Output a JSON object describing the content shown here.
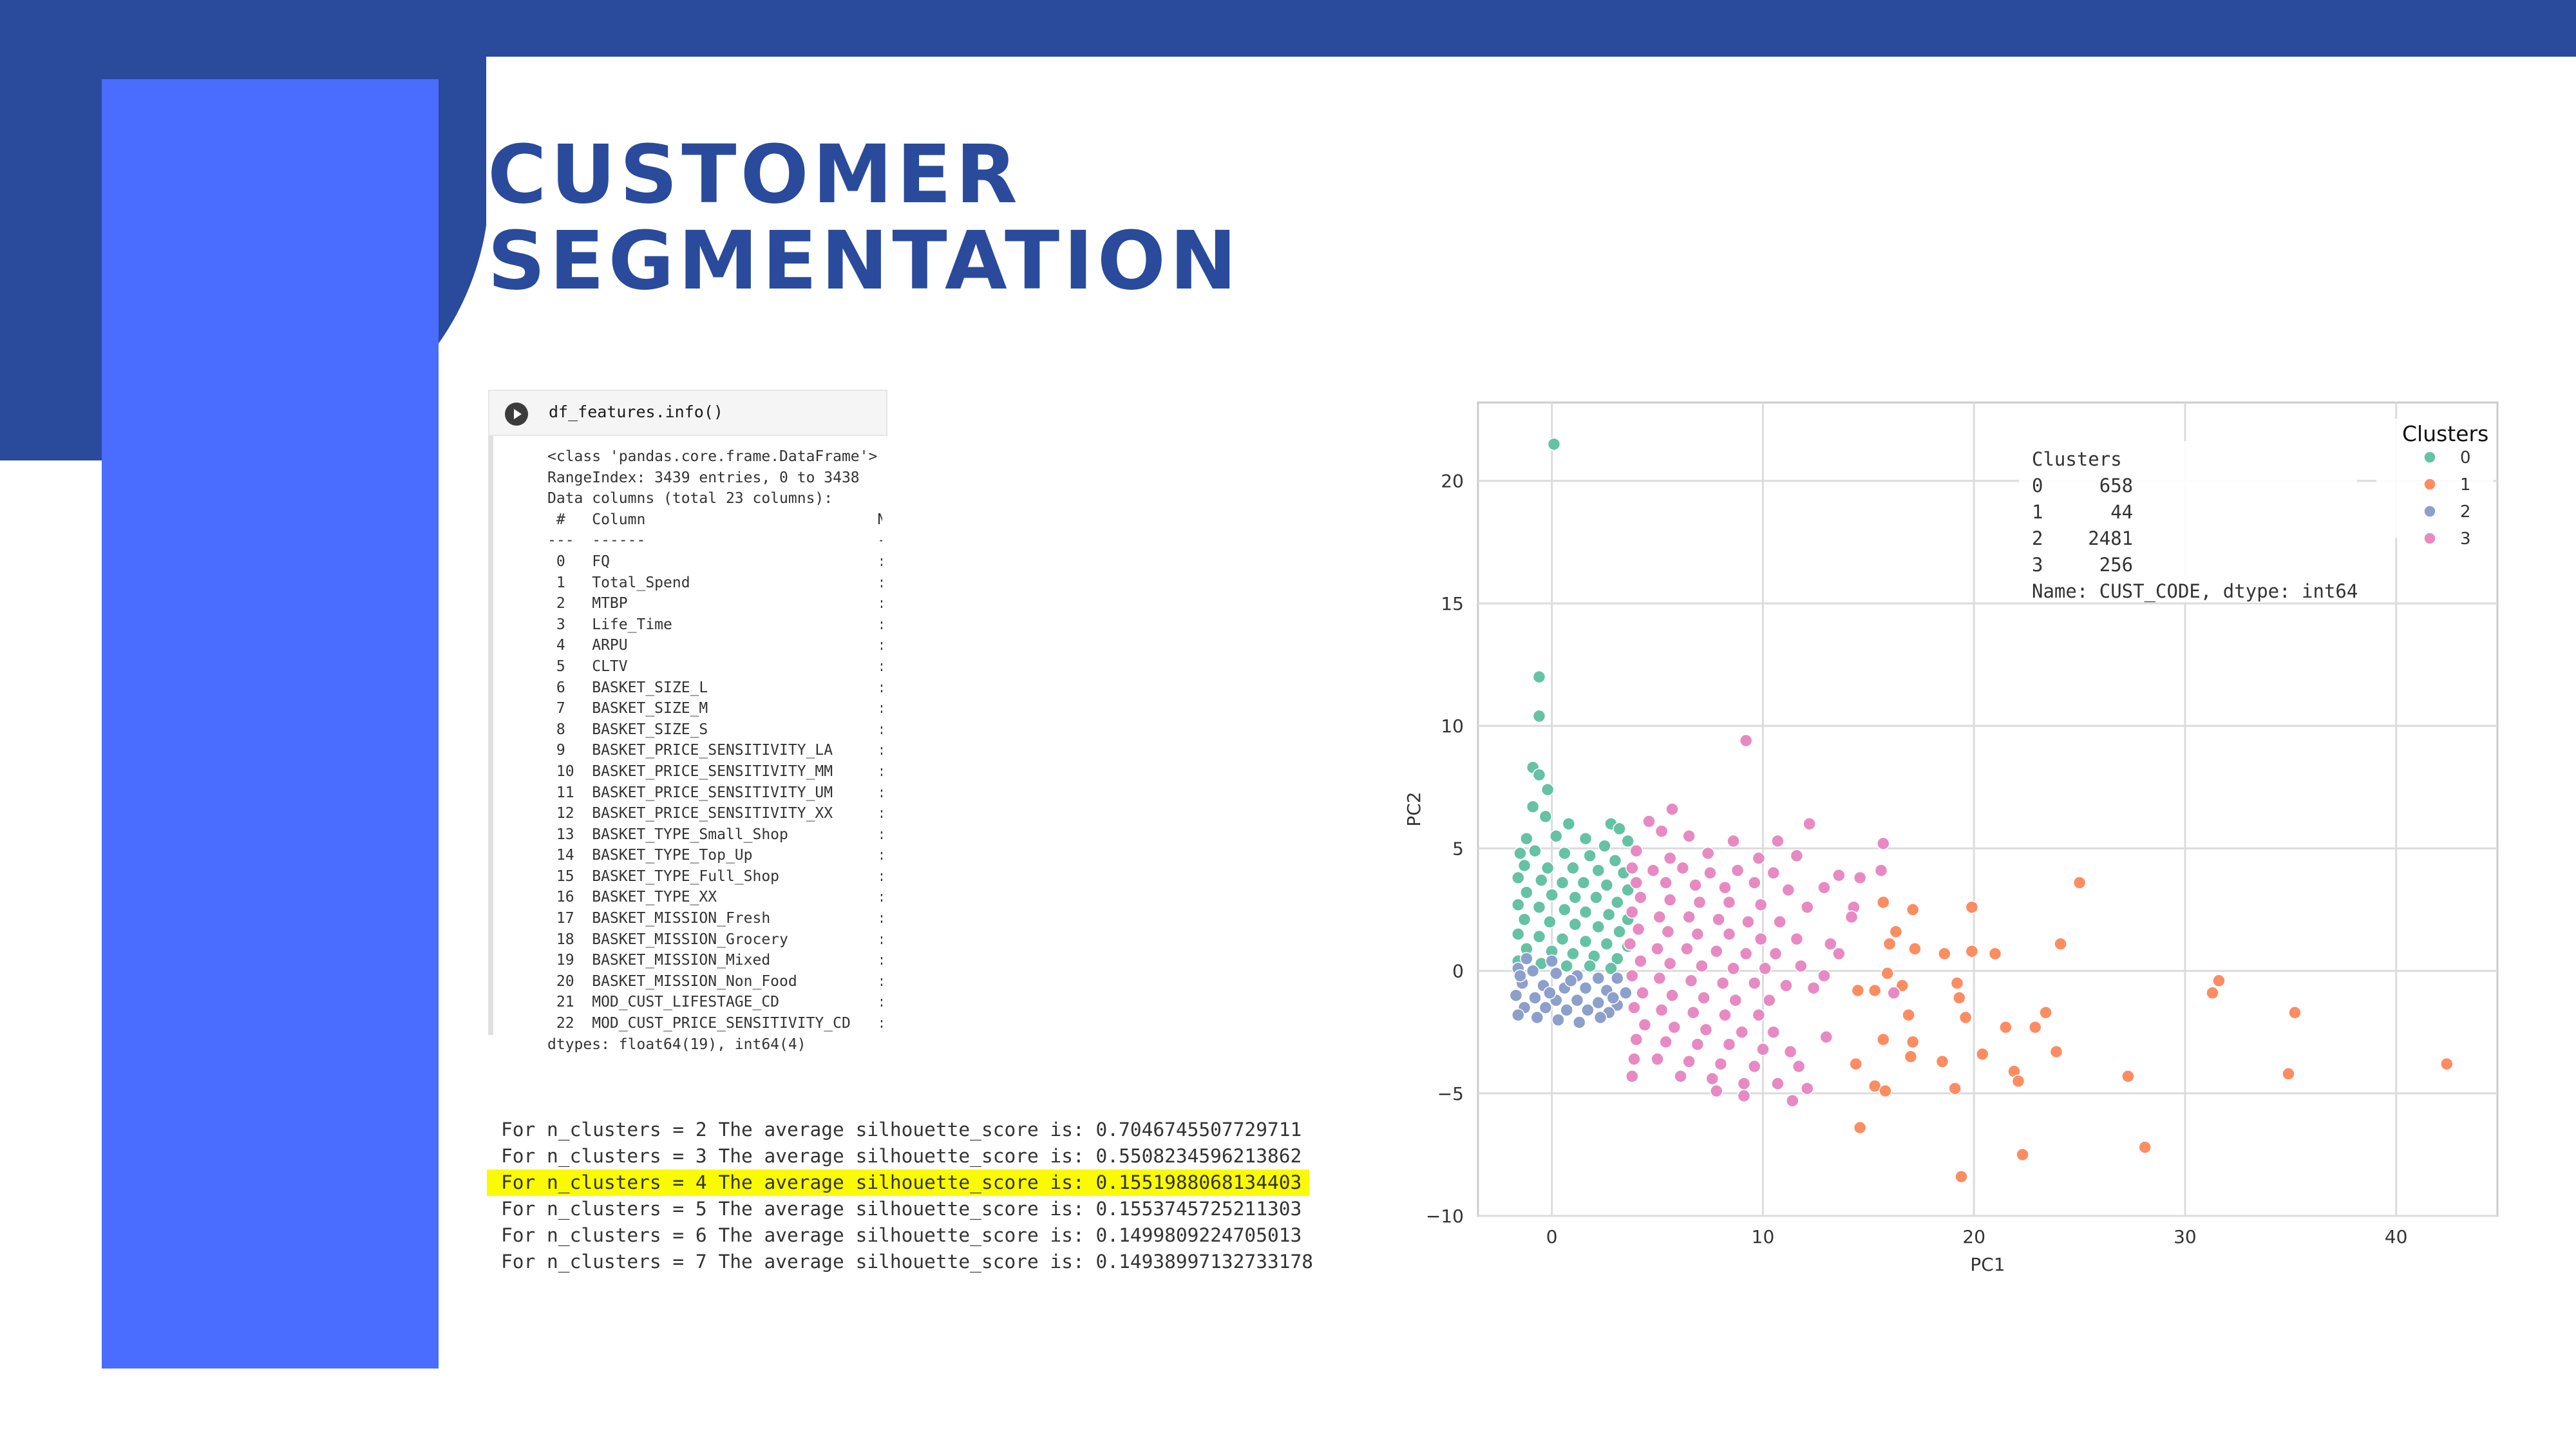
{
  "slide": {
    "title_line1": "CUSTOMER",
    "title_line2": "SEGMENTATION",
    "colors": {
      "brand_dark": "#2a4a9b",
      "brand_bright": "#4a6cff",
      "highlight": "#fafa00"
    }
  },
  "notebook": {
    "run_icon": "play-icon",
    "code": "df_features.info()",
    "output_lines": [
      "<class 'pandas.core.frame.DataFrame'>",
      "RangeIndex: 3439 entries, 0 to 3438",
      "Data columns (total 23 columns):",
      " #   Column                          N",
      "---  ------                          -",
      " 0   FQ                              :",
      " 1   Total_Spend                     :",
      " 2   MTBP                            :",
      " 3   Life_Time                       :",
      " 4   ARPU                            :",
      " 5   CLTV                            :",
      " 6   BASKET_SIZE_L                   :",
      " 7   BASKET_SIZE_M                   :",
      " 8   BASKET_SIZE_S                   :",
      " 9   BASKET_PRICE_SENSITIVITY_LA     :",
      " 10  BASKET_PRICE_SENSITIVITY_MM     :",
      " 11  BASKET_PRICE_SENSITIVITY_UM     :",
      " 12  BASKET_PRICE_SENSITIVITY_XX     :",
      " 13  BASKET_TYPE_Small_Shop          :",
      " 14  BASKET_TYPE_Top_Up              :",
      " 15  BASKET_TYPE_Full_Shop           :",
      " 16  BASKET_TYPE_XX                  :",
      " 17  BASKET_MISSION_Fresh            :",
      " 18  BASKET_MISSION_Grocery          :",
      " 19  BASKET_MISSION_Mixed            :",
      " 20  BASKET_MISSION_Non_Food         :",
      " 21  MOD_CUST_LIFESTAGE_CD           :",
      " 22  MOD_CUST_PRICE_SENSITIVITY_CD   :",
      "dtypes: float64(19), int64(4)"
    ]
  },
  "silhouette": {
    "lines": [
      "For n_clusters = 2 The average silhouette_score is: 0.7046745507729711",
      "For n_clusters = 3 The average silhouette_score is: 0.5508234596213862",
      "For n_clusters = 4 The average silhouette_score is: 0.1551988068134403",
      "For n_clusters = 5 The average silhouette_score is: 0.1553745725211303",
      "For n_clusters = 6 The average silhouette_score is: 0.1499809224705013",
      "For n_clusters = 7 The average silhouette_score is: 0.14938997132733178"
    ],
    "highlighted_index": 2
  },
  "chart_data": {
    "type": "scatter",
    "xlabel": "PC1",
    "ylabel": "PC2",
    "xlim": [
      -3.5,
      44.8
    ],
    "ylim": [
      -10,
      23.2
    ],
    "xticks": [
      0,
      10,
      20,
      30,
      40
    ],
    "yticks": [
      -10,
      -5,
      0,
      5,
      10,
      15,
      20
    ],
    "grid": true,
    "legend": {
      "title": "Clusters",
      "placement": "top-right",
      "items": [
        {
          "label": "0",
          "color": "#66c2a5"
        },
        {
          "label": "1",
          "color": "#fc8d62"
        },
        {
          "label": "2",
          "color": "#8da0cb"
        },
        {
          "label": "3",
          "color": "#e78ac3"
        }
      ]
    },
    "annotation": {
      "lines": [
        "Clusters",
        "0     658",
        "1      44",
        "2    2481",
        "3     256",
        "Name: CUST_CODE, dtype: int64"
      ]
    },
    "series": [
      {
        "name": "0",
        "color": "#66c2a5",
        "points": [
          [
            0.1,
            21.5
          ],
          [
            -0.6,
            12
          ],
          [
            -0.6,
            10.4
          ],
          [
            -0.9,
            8.3
          ],
          [
            -0.6,
            8
          ],
          [
            -0.2,
            7.4
          ],
          [
            -0.9,
            6.7
          ],
          [
            -0.3,
            6.3
          ],
          [
            0.8,
            6
          ],
          [
            2.8,
            6
          ],
          [
            3.2,
            5.8
          ],
          [
            -1.2,
            5.4
          ],
          [
            0.2,
            5.5
          ],
          [
            1.6,
            5.4
          ],
          [
            2.5,
            5.1
          ],
          [
            3.6,
            5.3
          ],
          [
            -1.5,
            4.8
          ],
          [
            -0.8,
            4.9
          ],
          [
            0.6,
            4.8
          ],
          [
            1.8,
            4.7
          ],
          [
            3,
            4.5
          ],
          [
            -1.3,
            4.3
          ],
          [
            -0.2,
            4.2
          ],
          [
            1,
            4.2
          ],
          [
            2.2,
            4.1
          ],
          [
            3.4,
            4
          ],
          [
            -1.6,
            3.8
          ],
          [
            -0.5,
            3.7
          ],
          [
            0.5,
            3.6
          ],
          [
            1.5,
            3.6
          ],
          [
            2.6,
            3.5
          ],
          [
            3.6,
            3.3
          ],
          [
            -1.2,
            3.2
          ],
          [
            0,
            3.1
          ],
          [
            1.1,
            3
          ],
          [
            2.1,
            3
          ],
          [
            3.1,
            2.8
          ],
          [
            -1.6,
            2.7
          ],
          [
            -0.6,
            2.6
          ],
          [
            0.6,
            2.5
          ],
          [
            1.6,
            2.4
          ],
          [
            2.7,
            2.3
          ],
          [
            3.6,
            2.1
          ],
          [
            -1.3,
            2.1
          ],
          [
            -0.1,
            2
          ],
          [
            1.1,
            1.9
          ],
          [
            2.2,
            1.8
          ],
          [
            3.2,
            1.6
          ],
          [
            -1.6,
            1.5
          ],
          [
            -0.6,
            1.4
          ],
          [
            0.5,
            1.3
          ],
          [
            1.6,
            1.2
          ],
          [
            2.6,
            1.1
          ],
          [
            3.6,
            1
          ],
          [
            -1.2,
            0.9
          ],
          [
            0,
            0.8
          ],
          [
            1,
            0.7
          ],
          [
            2,
            0.6
          ],
          [
            3.1,
            0.5
          ],
          [
            -1.6,
            0.4
          ],
          [
            -0.5,
            0.3
          ],
          [
            0.7,
            0.2
          ],
          [
            1.8,
            0.2
          ],
          [
            2.8,
            0.1
          ]
        ]
      },
      {
        "name": "1",
        "color": "#fc8d62",
        "points": [
          [
            15.7,
            2.8
          ],
          [
            16.3,
            1.6
          ],
          [
            17.1,
            2.5
          ],
          [
            16,
            1.1
          ],
          [
            17.2,
            0.9
          ],
          [
            18.6,
            0.7
          ],
          [
            19.9,
            2.6
          ],
          [
            19.9,
            0.8
          ],
          [
            21,
            0.7
          ],
          [
            15.9,
            -0.1
          ],
          [
            14.5,
            -0.8
          ],
          [
            15.3,
            -0.8
          ],
          [
            16.6,
            -0.6
          ],
          [
            19.2,
            -0.5
          ],
          [
            19.3,
            -1.1
          ],
          [
            19.6,
            -1.9
          ],
          [
            21.5,
            -2.3
          ],
          [
            22.9,
            -2.3
          ],
          [
            24.1,
            1.1
          ],
          [
            25,
            3.6
          ],
          [
            31.6,
            -0.4
          ],
          [
            31.3,
            -0.9
          ],
          [
            35.2,
            -1.7
          ],
          [
            15.7,
            -2.8
          ],
          [
            17.1,
            -2.9
          ],
          [
            17,
            -3.5
          ],
          [
            18.5,
            -3.7
          ],
          [
            19.1,
            -4.8
          ],
          [
            15.3,
            -4.7
          ],
          [
            15.8,
            -4.9
          ],
          [
            14.4,
            -3.8
          ],
          [
            20.4,
            -3.4
          ],
          [
            21.9,
            -4.1
          ],
          [
            22.1,
            -4.5
          ],
          [
            23.9,
            -3.3
          ],
          [
            27.3,
            -4.3
          ],
          [
            34.9,
            -4.2
          ],
          [
            42.4,
            -3.8
          ],
          [
            14.6,
            -6.4
          ],
          [
            19.4,
            -8.4
          ],
          [
            22.3,
            -7.5
          ],
          [
            28.1,
            -7.2
          ],
          [
            23.4,
            -1.7
          ],
          [
            16.9,
            -1.8
          ]
        ]
      },
      {
        "name": "2",
        "color": "#8da0cb",
        "points": [
          [
            -1.6,
            0.1
          ],
          [
            -0.9,
            0
          ],
          [
            0.2,
            -0.1
          ],
          [
            1.2,
            -0.2
          ],
          [
            2.2,
            -0.3
          ],
          [
            3.1,
            -0.3
          ],
          [
            -1.4,
            -0.5
          ],
          [
            -0.4,
            -0.6
          ],
          [
            0.6,
            -0.7
          ],
          [
            1.6,
            -0.7
          ],
          [
            2.6,
            -0.8
          ],
          [
            3.5,
            -0.9
          ],
          [
            -1.7,
            -1
          ],
          [
            -0.8,
            -1.1
          ],
          [
            0.2,
            -1.2
          ],
          [
            1.2,
            -1.2
          ],
          [
            2.2,
            -1.3
          ],
          [
            3.1,
            -1.4
          ],
          [
            -1.3,
            -1.5
          ],
          [
            -0.3,
            -1.5
          ],
          [
            0.7,
            -1.6
          ],
          [
            1.7,
            -1.6
          ],
          [
            2.7,
            -1.7
          ],
          [
            -1.6,
            -1.8
          ],
          [
            -0.7,
            -1.9
          ],
          [
            0.3,
            -2
          ],
          [
            1.3,
            -2.1
          ],
          [
            2.3,
            -1.9
          ],
          [
            -1.2,
            0.5
          ],
          [
            0,
            0.4
          ],
          [
            -1.5,
            -0.2
          ],
          [
            0.9,
            -0.4
          ],
          [
            2.9,
            -1.1
          ],
          [
            -0.1,
            -0.9
          ]
        ]
      },
      {
        "name": "3",
        "color": "#e78ac3",
        "points": [
          [
            9.2,
            9.4
          ],
          [
            5.7,
            6.6
          ],
          [
            4.6,
            6.1
          ],
          [
            12.2,
            6
          ],
          [
            5.2,
            5.7
          ],
          [
            6.5,
            5.5
          ],
          [
            8.6,
            5.3
          ],
          [
            10.7,
            5.3
          ],
          [
            15.7,
            5.2
          ],
          [
            4,
            4.9
          ],
          [
            5.6,
            4.6
          ],
          [
            7.4,
            4.8
          ],
          [
            9.8,
            4.6
          ],
          [
            11.6,
            4.7
          ],
          [
            3.8,
            4.2
          ],
          [
            4.8,
            4.1
          ],
          [
            6.2,
            4.2
          ],
          [
            7.5,
            4
          ],
          [
            8.8,
            4.1
          ],
          [
            10.5,
            4
          ],
          [
            13.6,
            3.9
          ],
          [
            14.6,
            3.8
          ],
          [
            4,
            3.6
          ],
          [
            5.4,
            3.6
          ],
          [
            6.8,
            3.5
          ],
          [
            8.2,
            3.4
          ],
          [
            9.6,
            3.6
          ],
          [
            11.2,
            3.3
          ],
          [
            12.9,
            3.4
          ],
          [
            4.2,
            3
          ],
          [
            5.6,
            2.9
          ],
          [
            7,
            2.8
          ],
          [
            8.4,
            2.8
          ],
          [
            9.9,
            2.7
          ],
          [
            12.1,
            2.6
          ],
          [
            14.3,
            2.6
          ],
          [
            3.8,
            2.4
          ],
          [
            5.1,
            2.2
          ],
          [
            6.5,
            2.2
          ],
          [
            7.9,
            2.1
          ],
          [
            9.3,
            2
          ],
          [
            10.8,
            2
          ],
          [
            4.1,
            1.7
          ],
          [
            5.5,
            1.6
          ],
          [
            6.9,
            1.5
          ],
          [
            8.4,
            1.5
          ],
          [
            9.9,
            1.3
          ],
          [
            11.6,
            1.3
          ],
          [
            13.2,
            1.1
          ],
          [
            3.7,
            1.1
          ],
          [
            5,
            0.9
          ],
          [
            6.4,
            0.9
          ],
          [
            7.8,
            0.8
          ],
          [
            9.2,
            0.7
          ],
          [
            10.6,
            0.7
          ],
          [
            13.6,
            0.7
          ],
          [
            4.2,
            0.4
          ],
          [
            5.6,
            0.3
          ],
          [
            7.1,
            0.2
          ],
          [
            8.6,
            0.1
          ],
          [
            10.1,
            0.1
          ],
          [
            11.8,
            0.2
          ],
          [
            3.8,
            -0.2
          ],
          [
            5.1,
            -0.3
          ],
          [
            6.6,
            -0.4
          ],
          [
            8.1,
            -0.5
          ],
          [
            9.6,
            -0.5
          ],
          [
            11.1,
            -0.6
          ],
          [
            12.4,
            -0.7
          ],
          [
            4.3,
            -0.9
          ],
          [
            5.7,
            -1
          ],
          [
            7.2,
            -1.1
          ],
          [
            8.7,
            -1.2
          ],
          [
            10.3,
            -1.2
          ],
          [
            3.9,
            -1.5
          ],
          [
            5.2,
            -1.6
          ],
          [
            6.7,
            -1.7
          ],
          [
            8.2,
            -1.8
          ],
          [
            9.8,
            -1.8
          ],
          [
            4.4,
            -2.2
          ],
          [
            5.8,
            -2.3
          ],
          [
            7.3,
            -2.4
          ],
          [
            9,
            -2.5
          ],
          [
            10.5,
            -2.5
          ],
          [
            4,
            -2.8
          ],
          [
            5.4,
            -2.9
          ],
          [
            6.9,
            -3
          ],
          [
            8.4,
            -3
          ],
          [
            10,
            -3.2
          ],
          [
            11.3,
            -3.3
          ],
          [
            5,
            -3.6
          ],
          [
            6.5,
            -3.7
          ],
          [
            8,
            -3.8
          ],
          [
            9.6,
            -3.9
          ],
          [
            11.7,
            -3.9
          ],
          [
            3.8,
            -4.3
          ],
          [
            6.1,
            -4.3
          ],
          [
            7.6,
            -4.4
          ],
          [
            9.1,
            -4.6
          ],
          [
            10.7,
            -4.6
          ],
          [
            12.1,
            -4.8
          ],
          [
            7.8,
            -4.9
          ],
          [
            9.1,
            -5.1
          ],
          [
            11.4,
            -5.3
          ],
          [
            13,
            -2.7
          ],
          [
            12.9,
            -0.2
          ],
          [
            14.2,
            2.2
          ],
          [
            15.6,
            4.1
          ],
          [
            16.2,
            -0.9
          ],
          [
            3.9,
            -3.6
          ]
        ]
      }
    ]
  }
}
